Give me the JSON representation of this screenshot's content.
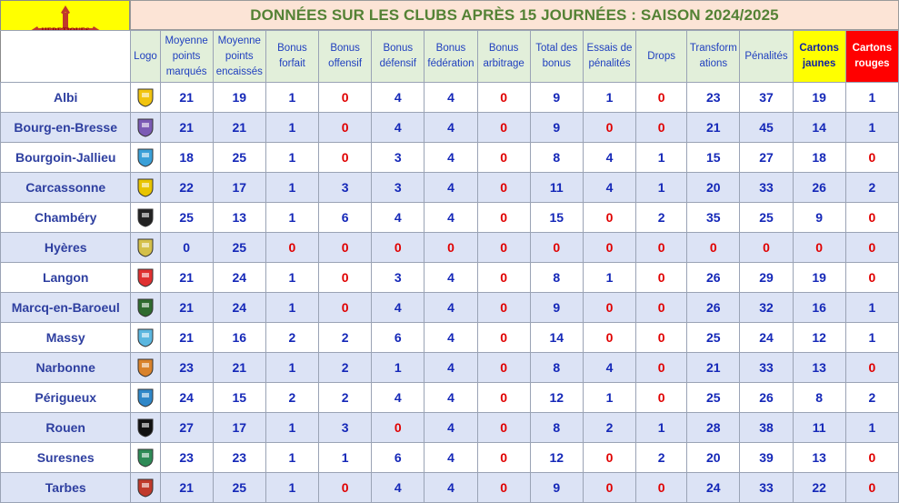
{
  "title": "DONNÉES SUR LES CLUBS APRÈS 15 JOURNÉES : SAISON 2024/2025",
  "brand_logo_icon": "occitan-cross-helmet-logo",
  "colors": {
    "header_bg": "#e2efda",
    "title_bg": "#fce4d6",
    "title_text": "#548235",
    "header_text": "#1f3fbf",
    "club_text": "#2e3fa0",
    "value_blue": "#1528b8",
    "value_red": "#e00000",
    "yellow_cards": "#ffff00",
    "red_cards": "#ff0000",
    "alt_row": "#dce3f5"
  },
  "columns": [
    "Logo",
    "Moyenne points marqués",
    "Moyenne points encaissés",
    "Bonus forfait",
    "Bonus offensif",
    "Bonus défensif",
    "Bonus fédération",
    "Bonus arbitrage",
    "Total des bonus",
    "Essais de pénalités",
    "Drops",
    "Transform ations",
    "Pénalités",
    "Cartons jaunes",
    "Cartons rouges"
  ],
  "rows": [
    {
      "club": "Albi",
      "logo": "albi-logo",
      "logo_color": "#f1c40f",
      "values": [
        "21",
        "19",
        "1",
        "0",
        "4",
        "4",
        "0",
        "9",
        "1",
        "0",
        "23",
        "37",
        "19",
        "1"
      ]
    },
    {
      "club": "Bourg-en-Bresse",
      "logo": "bourg-en-bresse-logo",
      "logo_color": "#7b5bb5",
      "values": [
        "21",
        "21",
        "1",
        "0",
        "4",
        "4",
        "0",
        "9",
        "0",
        "0",
        "21",
        "45",
        "14",
        "1"
      ]
    },
    {
      "club": "Bourgoin-Jallieu",
      "logo": "bourgoin-jallieu-logo",
      "logo_color": "#3aa0d8",
      "values": [
        "18",
        "25",
        "1",
        "0",
        "3",
        "4",
        "0",
        "8",
        "4",
        "1",
        "15",
        "27",
        "18",
        "0"
      ]
    },
    {
      "club": "Carcassonne",
      "logo": "carcassonne-logo",
      "logo_color": "#e8c400",
      "values": [
        "22",
        "17",
        "1",
        "3",
        "3",
        "4",
        "0",
        "11",
        "4",
        "1",
        "20",
        "33",
        "26",
        "2"
      ]
    },
    {
      "club": "Chambéry",
      "logo": "chambery-logo",
      "logo_color": "#222222",
      "values": [
        "25",
        "13",
        "1",
        "6",
        "4",
        "4",
        "0",
        "15",
        "0",
        "2",
        "35",
        "25",
        "9",
        "0"
      ]
    },
    {
      "club": "Hyères",
      "logo": "hyeres-logo",
      "logo_color": "#d4c04a",
      "values": [
        "0",
        "25",
        "0",
        "0",
        "0",
        "0",
        "0",
        "0",
        "0",
        "0",
        "0",
        "0",
        "0",
        "0"
      ]
    },
    {
      "club": "Langon",
      "logo": "langon-logo",
      "logo_color": "#e03030",
      "values": [
        "21",
        "24",
        "1",
        "0",
        "3",
        "4",
        "0",
        "8",
        "1",
        "0",
        "26",
        "29",
        "19",
        "0"
      ]
    },
    {
      "club": "Marcq-en-Baroeul",
      "logo": "marcq-en-baroeul-logo",
      "logo_color": "#2f6b2f",
      "values": [
        "21",
        "24",
        "1",
        "0",
        "4",
        "4",
        "0",
        "9",
        "0",
        "0",
        "26",
        "32",
        "16",
        "1"
      ]
    },
    {
      "club": "Massy",
      "logo": "massy-logo",
      "logo_color": "#5bb7e0",
      "values": [
        "21",
        "16",
        "2",
        "2",
        "6",
        "4",
        "0",
        "14",
        "0",
        "0",
        "25",
        "24",
        "12",
        "1"
      ]
    },
    {
      "club": "Narbonne",
      "logo": "narbonne-logo",
      "logo_color": "#d9822b",
      "values": [
        "23",
        "21",
        "1",
        "2",
        "1",
        "4",
        "0",
        "8",
        "4",
        "0",
        "21",
        "33",
        "13",
        "0"
      ]
    },
    {
      "club": "Périgueux",
      "logo": "perigueux-logo",
      "logo_color": "#2f87c8",
      "values": [
        "24",
        "15",
        "2",
        "2",
        "4",
        "4",
        "0",
        "12",
        "1",
        "0",
        "25",
        "26",
        "8",
        "2"
      ]
    },
    {
      "club": "Rouen",
      "logo": "rouen-logo",
      "logo_color": "#111111",
      "values": [
        "27",
        "17",
        "1",
        "3",
        "0",
        "4",
        "0",
        "8",
        "2",
        "1",
        "28",
        "38",
        "11",
        "1"
      ]
    },
    {
      "club": "Suresnes",
      "logo": "suresnes-logo",
      "logo_color": "#2e8b57",
      "values": [
        "23",
        "23",
        "1",
        "1",
        "6",
        "4",
        "0",
        "12",
        "0",
        "2",
        "20",
        "39",
        "13",
        "0"
      ]
    },
    {
      "club": "Tarbes",
      "logo": "tarbes-logo",
      "logo_color": "#c0392b",
      "values": [
        "21",
        "25",
        "1",
        "0",
        "4",
        "4",
        "0",
        "9",
        "0",
        "0",
        "24",
        "33",
        "22",
        "0"
      ]
    }
  ],
  "red_cells": [
    [
      0,
      3
    ],
    [
      0,
      6
    ],
    [
      0,
      9
    ],
    [
      1,
      3
    ],
    [
      1,
      6
    ],
    [
      1,
      8
    ],
    [
      1,
      9
    ],
    [
      2,
      3
    ],
    [
      2,
      6
    ],
    [
      2,
      13
    ],
    [
      3,
      6
    ],
    [
      4,
      6
    ],
    [
      4,
      8
    ],
    [
      4,
      13
    ],
    [
      5,
      2
    ],
    [
      5,
      3
    ],
    [
      5,
      4
    ],
    [
      5,
      5
    ],
    [
      5,
      6
    ],
    [
      5,
      7
    ],
    [
      5,
      8
    ],
    [
      5,
      9
    ],
    [
      5,
      10
    ],
    [
      5,
      11
    ],
    [
      5,
      12
    ],
    [
      5,
      13
    ],
    [
      6,
      3
    ],
    [
      6,
      6
    ],
    [
      6,
      9
    ],
    [
      6,
      13
    ],
    [
      7,
      3
    ],
    [
      7,
      6
    ],
    [
      7,
      8
    ],
    [
      7,
      9
    ],
    [
      8,
      6
    ],
    [
      8,
      8
    ],
    [
      8,
      9
    ],
    [
      9,
      6
    ],
    [
      9,
      9
    ],
    [
      9,
      13
    ],
    [
      10,
      6
    ],
    [
      10,
      9
    ],
    [
      11,
      4
    ],
    [
      11,
      6
    ],
    [
      12,
      6
    ],
    [
      12,
      8
    ],
    [
      12,
      13
    ],
    [
      13,
      3
    ],
    [
      13,
      6
    ],
    [
      13,
      8
    ],
    [
      13,
      9
    ],
    [
      13,
      13
    ]
  ]
}
